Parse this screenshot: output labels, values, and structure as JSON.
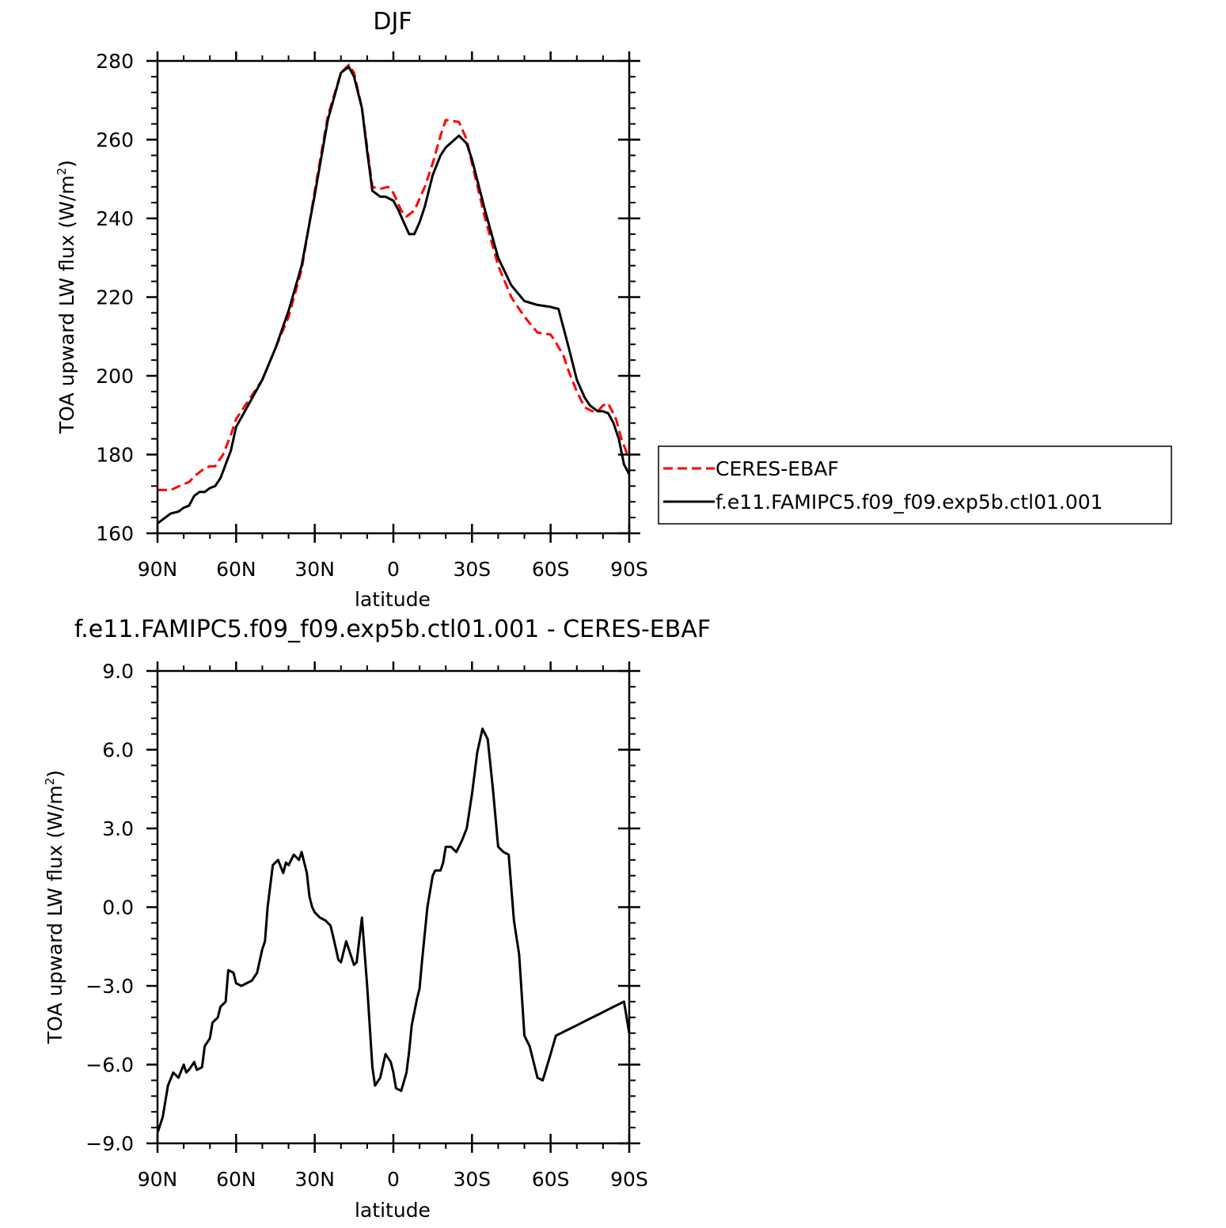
{
  "colors": {
    "obs": "#ff0000",
    "model": "#000000",
    "axis": "#000000"
  },
  "legend": {
    "entries": [
      {
        "label": "CERES-EBAF",
        "style": "dashed",
        "color": "#ff0000"
      },
      {
        "label": "f.e11.FAMIPC5.f09_f09.exp5b.ctl01.001",
        "style": "solid",
        "color": "#000000"
      }
    ]
  },
  "chart_data": [
    {
      "type": "line",
      "title": "DJF",
      "xlabel": "latitude",
      "ylabel_prefix": "TOA upward LW flux (W/m",
      "ylabel_sup": "2",
      "ylabel_suffix": ")",
      "xlim": [
        90,
        -90
      ],
      "ylim": [
        160,
        280
      ],
      "xticks": [
        90,
        60,
        30,
        0,
        -30,
        -60,
        -90
      ],
      "xtick_labels": [
        "90N",
        "60N",
        "30N",
        "0",
        "30S",
        "60S",
        "90S"
      ],
      "yticks": [
        160,
        180,
        200,
        220,
        240,
        260,
        280
      ],
      "ytick_labels": [
        "160",
        "180",
        "200",
        "220",
        "240",
        "260",
        "280"
      ],
      "series": [
        {
          "name": "CERES-EBAF",
          "style": "dashed",
          "x": [
            90,
            85,
            80,
            78,
            75,
            72,
            70,
            68,
            65,
            62,
            60,
            55,
            50,
            45,
            40,
            35,
            30,
            25,
            20,
            17,
            15,
            12,
            10,
            8,
            5,
            2,
            0,
            -3,
            -5,
            -8,
            -10,
            -12,
            -15,
            -18,
            -20,
            -25,
            -28,
            -30,
            -35,
            -40,
            -45,
            -50,
            -55,
            -60,
            -62,
            -65,
            -67,
            -70,
            -73,
            -76,
            -78,
            -80,
            -82,
            -85,
            -87,
            -89,
            -90
          ],
          "y": [
            171,
            171,
            172.5,
            173,
            175,
            176.5,
            177,
            177,
            180,
            185,
            189,
            194,
            199,
            207,
            215,
            227,
            247,
            266,
            277,
            279,
            277,
            268,
            258,
            248,
            247.5,
            248,
            246.5,
            242,
            240.5,
            242,
            245,
            248,
            254,
            261,
            265,
            264.5,
            260,
            254,
            240,
            228,
            220,
            215,
            211,
            210.5,
            208.5,
            205,
            201,
            196,
            192,
            191,
            191,
            192.5,
            193,
            189,
            184,
            180.5,
            180
          ]
        },
        {
          "name": "f.e11.FAMIPC5.f09_f09.exp5b.ctl01.001",
          "style": "solid",
          "x": [
            90,
            88,
            85,
            82,
            80,
            78,
            76,
            74,
            72,
            70,
            68,
            66,
            64,
            62,
            60,
            55,
            50,
            45,
            40,
            35,
            30,
            25,
            20,
            17,
            15,
            12,
            10,
            8,
            5,
            3,
            0,
            -2,
            -4,
            -6,
            -8,
            -10,
            -12,
            -15,
            -18,
            -20,
            -25,
            -28,
            -30,
            -35,
            -40,
            -45,
            -50,
            -55,
            -60,
            -63,
            -65,
            -67,
            -70,
            -73,
            -75,
            -78,
            -80,
            -82,
            -84,
            -86,
            -88,
            -90
          ],
          "y": [
            162.5,
            163.5,
            165,
            165.5,
            166.5,
            167,
            169.5,
            170.5,
            170.5,
            171.5,
            172,
            174,
            177.5,
            181,
            187,
            193,
            199,
            207,
            216.5,
            228,
            246,
            265,
            277,
            278.5,
            276,
            268,
            257,
            247,
            245.5,
            245.5,
            244.5,
            242,
            239,
            236,
            236,
            239,
            243,
            251,
            256,
            258,
            261,
            259,
            255,
            242,
            230,
            223,
            219,
            218,
            217.5,
            217,
            212,
            207,
            199,
            194.5,
            192.5,
            191,
            191,
            190.5,
            188,
            184,
            177.5,
            175
          ]
        }
      ]
    },
    {
      "type": "line",
      "title": "f.e11.FAMIPC5.f09_f09.exp5b.ctl01.001 - CERES-EBAF",
      "xlabel": "latitude",
      "ylabel_prefix": "TOA upward LW flux (W/m",
      "ylabel_sup": "2",
      "ylabel_suffix": ")",
      "xlim": [
        90,
        -90
      ],
      "ylim": [
        -9,
        9
      ],
      "xticks": [
        90,
        60,
        30,
        0,
        -30,
        -60,
        -90
      ],
      "xtick_labels": [
        "90N",
        "60N",
        "30N",
        "0",
        "30S",
        "60S",
        "90S"
      ],
      "yticks": [
        -9,
        -6,
        -3,
        0,
        3,
        6,
        9
      ],
      "ytick_labels": [
        "−9.0",
        "−6.0",
        "−3.0",
        "0.0",
        "3.0",
        "6.0",
        "9.0"
      ],
      "series": [
        {
          "name": "",
          "style": "solid",
          "x": [
            90,
            88,
            86,
            84,
            82,
            80,
            79,
            78,
            76,
            75,
            73,
            72,
            70,
            69,
            67,
            66,
            64,
            63,
            61,
            60,
            58,
            56,
            54,
            52,
            50,
            49,
            48,
            46,
            44,
            42,
            41,
            40,
            38,
            36,
            35,
            33,
            32,
            31,
            30,
            29,
            28,
            26,
            24,
            23,
            21,
            20,
            18,
            17,
            15,
            14,
            12,
            10,
            8,
            7,
            5,
            3,
            1,
            0,
            -1,
            -3,
            -5,
            -6,
            -7,
            -9,
            -10,
            -11,
            -13,
            -15,
            -16,
            -18,
            -19,
            -20,
            -22,
            -24,
            -26,
            -28,
            -30,
            -32,
            -34,
            -36,
            -38,
            -40,
            -42,
            -44,
            -46,
            -48,
            -50,
            -52,
            -55,
            -57,
            -60,
            -62,
            -64,
            -66,
            -68,
            -70,
            -72,
            -74,
            -76,
            -78,
            -80,
            -82,
            -84,
            -86,
            -88,
            -90
          ],
          "y": [
            -8.6,
            -8,
            -6.8,
            -6.3,
            -6.5,
            -6,
            -6.3,
            -6.2,
            -5.9,
            -6.2,
            -6.1,
            -5.3,
            -5,
            -4.4,
            -4.2,
            -3.8,
            -3.6,
            -2.4,
            -2.5,
            -2.9,
            -3,
            -2.9,
            -2.8,
            -2.5,
            -1.6,
            -1.3,
            0,
            1.6,
            1.8,
            1.3,
            1.7,
            1.6,
            2,
            1.8,
            2.1,
            1.3,
            0.4,
            0,
            -0.2,
            -0.3,
            -0.4,
            -0.5,
            -0.7,
            -1.1,
            -2,
            -2.1,
            -1.3,
            -1.6,
            -2.2,
            -2.1,
            -0.4,
            -3,
            -6.1,
            -6.8,
            -6.5,
            -5.6,
            -5.9,
            -6.3,
            -6.9,
            -7,
            -6.3,
            -5.5,
            -4.5,
            -3.5,
            -3.1,
            -2,
            0,
            1.2,
            1.4,
            1.4,
            1.7,
            2.3,
            2.3,
            2.1,
            2.5,
            3,
            4.3,
            5.9,
            6.8,
            6.4,
            4.5,
            2.3,
            2.1,
            2.0,
            -0.5,
            -1.8,
            -4.9,
            -5.3,
            -6.5,
            -6.6,
            -5.6,
            -4.9,
            -4.8,
            -4.7,
            -4.6,
            -4.5,
            -4.4,
            -4.3,
            -4.2,
            -4.1,
            -4.0,
            -3.9,
            -3.8,
            -3.7,
            -3.6,
            -4.8
          ]
        }
      ]
    }
  ]
}
